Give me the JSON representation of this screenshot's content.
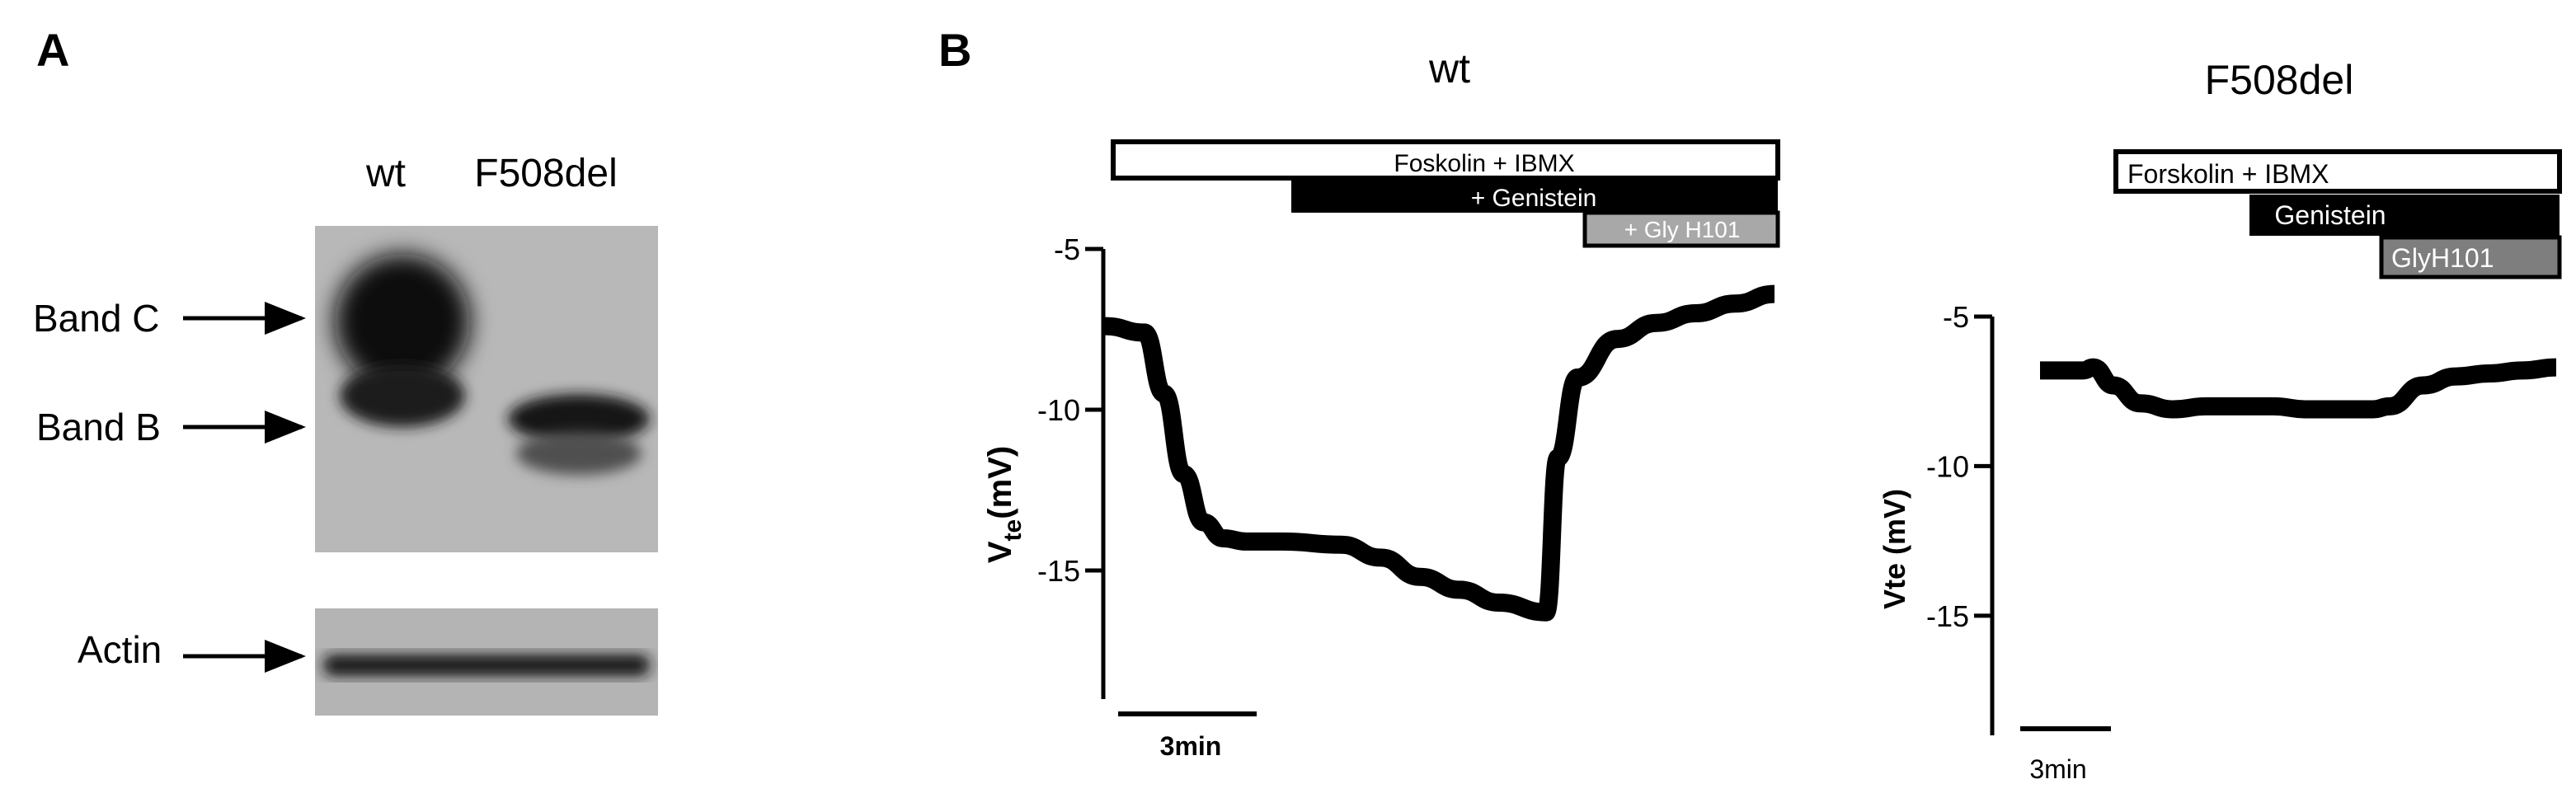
{
  "panel_a": {
    "label": "A",
    "lane_labels": [
      "wt",
      "F508del"
    ],
    "band_labels": {
      "band_c": "Band C",
      "band_b": "Band B",
      "actin": "Actin"
    }
  },
  "panel_b": {
    "label": "B",
    "wt": {
      "title": "wt",
      "bars": {
        "forskolin": "Foskolin + IBMX",
        "genistein": "+ Genistein",
        "glyh101": "+ Gly H101"
      },
      "ylabel_main": "V",
      "ylabel_sub": "te",
      "ylabel_rest": "(mV)",
      "scalebar": "3min"
    },
    "f508del": {
      "title": "F508del",
      "bars": {
        "forskolin": "Forskolin + IBMX",
        "genistein": "Genistein",
        "glyh101": "GlyH101"
      },
      "ylabel": "Vte (mV)",
      "scalebar": "3min"
    }
  },
  "chart_data": [
    {
      "type": "line",
      "title": "wt",
      "ylabel": "Vte (mV)",
      "ylim": [
        -19,
        -5
      ],
      "yticks": [
        -5,
        -10,
        -15
      ],
      "x_unit": "min",
      "x": [
        0,
        1.0,
        1.5,
        2.0,
        2.5,
        3.0,
        3.6,
        4.5,
        6.0,
        7.0,
        8.0,
        9.0,
        10.0,
        11.2,
        11.5,
        12.0,
        13.0,
        14.0,
        15.0,
        16.0,
        17.0
      ],
      "y": [
        -7.4,
        -7.6,
        -9.5,
        -12.0,
        -13.5,
        -14.0,
        -14.1,
        -14.1,
        -14.2,
        -14.6,
        -15.2,
        -15.6,
        -16.0,
        -16.3,
        -11.5,
        -9.0,
        -7.8,
        -7.3,
        -7.0,
        -6.7,
        -6.4
      ],
      "grid": false
    },
    {
      "type": "line",
      "title": "F508del",
      "ylabel": "Vte (mV)",
      "ylim": [
        -19,
        -5
      ],
      "yticks": [
        -5,
        -10,
        -15
      ],
      "x_unit": "min",
      "x": [
        0,
        1.3,
        1.6,
        2.2,
        3.0,
        4.0,
        5.0,
        6.0,
        7.0,
        8.0,
        9.0,
        10.0,
        10.5,
        11.5,
        12.5,
        13.5,
        14.5,
        15.5
      ],
      "y": [
        -6.8,
        -6.8,
        -6.7,
        -7.3,
        -7.9,
        -8.1,
        -8.0,
        -8.0,
        -8.0,
        -8.1,
        -8.1,
        -8.1,
        -8.0,
        -7.3,
        -7.0,
        -6.9,
        -6.8,
        -6.7
      ],
      "grid": false
    }
  ]
}
